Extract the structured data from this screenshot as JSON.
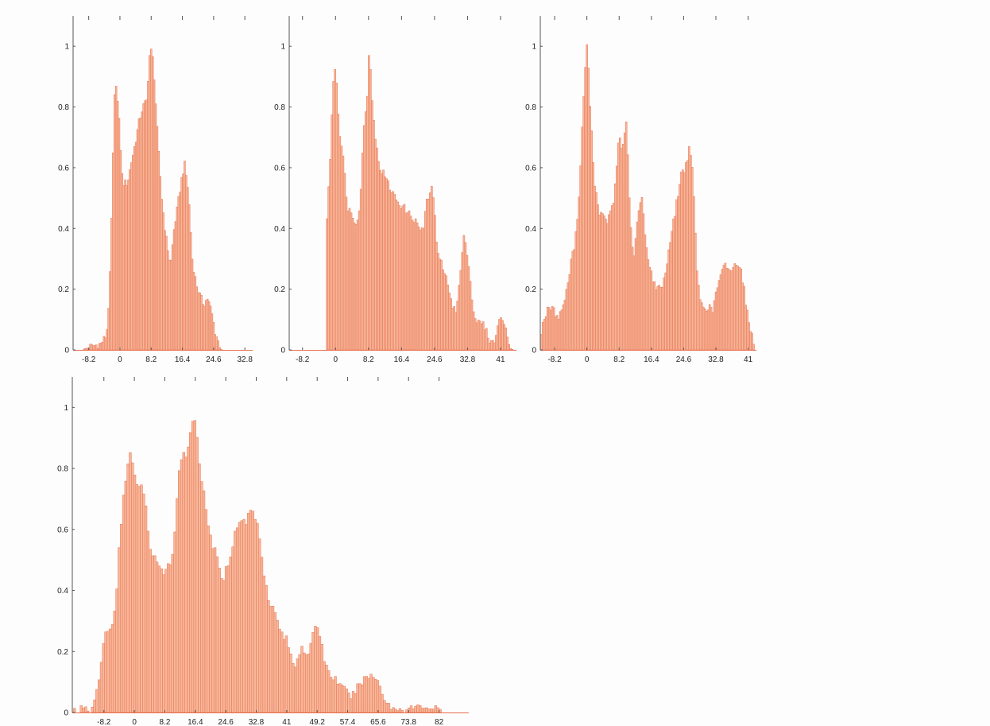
{
  "colors": {
    "bar_fill": "#f7b79a",
    "bar_line": "#e8704f",
    "axis": "#555555",
    "background": "#fdfdfd"
  },
  "chart_data": [
    {
      "type": "bar",
      "panel": "top-left",
      "x_ticks": [
        "-8.2",
        "0",
        "8.2",
        "16.4",
        "24.6",
        "32.8"
      ],
      "y_ticks": [
        "0",
        "0.2",
        "0.4",
        "0.6",
        "0.8",
        "1"
      ],
      "xlim": [
        -12.3,
        34.85
      ],
      "ylim": [
        0,
        1.1
      ],
      "grid": false,
      "profile": [
        [
          -10,
          0.0
        ],
        [
          -8,
          0.01
        ],
        [
          -5,
          0.02
        ],
        [
          -3.5,
          0.05
        ],
        [
          -2.7,
          0.2
        ],
        [
          -2,
          0.52
        ],
        [
          -1.5,
          0.82
        ],
        [
          -1,
          0.88
        ],
        [
          -0.5,
          0.8
        ],
        [
          0,
          0.72
        ],
        [
          0.5,
          0.58
        ],
        [
          1,
          0.55
        ],
        [
          2,
          0.55
        ],
        [
          3,
          0.62
        ],
        [
          4,
          0.68
        ],
        [
          5,
          0.75
        ],
        [
          6,
          0.8
        ],
        [
          7,
          0.82
        ],
        [
          7.8,
          0.97
        ],
        [
          8.4,
          0.99
        ],
        [
          9,
          0.9
        ],
        [
          10,
          0.68
        ],
        [
          11,
          0.5
        ],
        [
          12,
          0.38
        ],
        [
          13,
          0.3
        ],
        [
          13.5,
          0.29
        ],
        [
          14,
          0.38
        ],
        [
          15,
          0.46
        ],
        [
          16.4,
          0.58
        ],
        [
          17,
          0.61
        ],
        [
          18,
          0.52
        ],
        [
          19,
          0.3
        ],
        [
          20,
          0.22
        ],
        [
          21,
          0.18
        ],
        [
          22,
          0.15
        ],
        [
          23,
          0.17
        ],
        [
          24,
          0.13
        ],
        [
          25,
          0.06
        ],
        [
          26,
          0.02
        ],
        [
          27,
          0.0
        ],
        [
          34,
          0.0
        ]
      ]
    },
    {
      "type": "bar",
      "panel": "top-middle",
      "x_ticks": [
        "-8.2",
        "0",
        "8.2",
        "16.4",
        "24.6",
        "32.8",
        "41"
      ],
      "y_ticks": [
        "0",
        "0.2",
        "0.4",
        "0.6",
        "0.8",
        "1"
      ],
      "xlim": [
        -11.5,
        44.95
      ],
      "ylim": [
        0,
        1.1
      ],
      "grid": false,
      "profile": [
        [
          -3.5,
          0.0
        ],
        [
          -2.5,
          0.0
        ],
        [
          -2.3,
          0.3
        ],
        [
          -2,
          0.5
        ],
        [
          -1.5,
          0.55
        ],
        [
          -1,
          0.75
        ],
        [
          -0.3,
          0.95
        ],
        [
          0.3,
          0.88
        ],
        [
          1,
          0.72
        ],
        [
          2,
          0.62
        ],
        [
          3,
          0.47
        ],
        [
          4,
          0.45
        ],
        [
          5,
          0.42
        ],
        [
          6,
          0.46
        ],
        [
          7,
          0.72
        ],
        [
          8,
          0.86
        ],
        [
          8.4,
          1.0
        ],
        [
          9,
          0.85
        ],
        [
          10,
          0.68
        ],
        [
          11,
          0.6
        ],
        [
          12,
          0.58
        ],
        [
          13,
          0.55
        ],
        [
          14,
          0.52
        ],
        [
          15,
          0.5
        ],
        [
          16,
          0.48
        ],
        [
          17,
          0.47
        ],
        [
          18,
          0.45
        ],
        [
          19,
          0.44
        ],
        [
          20,
          0.42
        ],
        [
          21,
          0.4
        ],
        [
          22,
          0.4
        ],
        [
          22.5,
          0.48
        ],
        [
          23,
          0.5
        ],
        [
          24,
          0.53
        ],
        [
          24.6,
          0.48
        ],
        [
          25,
          0.35
        ],
        [
          26,
          0.3
        ],
        [
          27,
          0.25
        ],
        [
          28,
          0.22
        ],
        [
          29,
          0.15
        ],
        [
          30,
          0.12
        ],
        [
          31,
          0.25
        ],
        [
          32,
          0.38
        ],
        [
          33,
          0.3
        ],
        [
          34,
          0.15
        ],
        [
          35,
          0.09
        ],
        [
          36,
          0.09
        ],
        [
          37,
          0.08
        ],
        [
          38,
          0.04
        ],
        [
          39,
          0.02
        ],
        [
          40,
          0.05
        ],
        [
          41,
          0.12
        ],
        [
          42,
          0.08
        ],
        [
          43,
          0.02
        ],
        [
          44,
          0.0
        ]
      ]
    },
    {
      "type": "bar",
      "panel": "top-right",
      "x_ticks": [
        "-8.2",
        "0",
        "8.2",
        "16.4",
        "24.6",
        "32.8",
        "41"
      ],
      "y_ticks": [
        "0",
        "0.2",
        "0.4",
        "0.6",
        "0.8",
        "1"
      ],
      "xlim": [
        -11.85,
        43.1
      ],
      "ylim": [
        0,
        1.1
      ],
      "grid": false,
      "profile": [
        [
          -11.8,
          0.05
        ],
        [
          -11,
          0.1
        ],
        [
          -10,
          0.13
        ],
        [
          -9,
          0.14
        ],
        [
          -8,
          0.12
        ],
        [
          -7,
          0.11
        ],
        [
          -6,
          0.15
        ],
        [
          -5,
          0.2
        ],
        [
          -4,
          0.3
        ],
        [
          -3,
          0.35
        ],
        [
          -2,
          0.5
        ],
        [
          -1,
          0.78
        ],
        [
          -0.5,
          0.92
        ],
        [
          0,
          1.0
        ],
        [
          0.5,
          0.9
        ],
        [
          1,
          0.75
        ],
        [
          2,
          0.55
        ],
        [
          3,
          0.46
        ],
        [
          4,
          0.44
        ],
        [
          5,
          0.42
        ],
        [
          6,
          0.45
        ],
        [
          7,
          0.5
        ],
        [
          8,
          0.68
        ],
        [
          8.5,
          0.7
        ],
        [
          9,
          0.65
        ],
        [
          10,
          0.76
        ],
        [
          10.5,
          0.6
        ],
        [
          11,
          0.42
        ],
        [
          12,
          0.3
        ],
        [
          13,
          0.45
        ],
        [
          14,
          0.5
        ],
        [
          15,
          0.35
        ],
        [
          16,
          0.28
        ],
        [
          17,
          0.22
        ],
        [
          18,
          0.2
        ],
        [
          19,
          0.21
        ],
        [
          20,
          0.25
        ],
        [
          21,
          0.35
        ],
        [
          22,
          0.42
        ],
        [
          23,
          0.5
        ],
        [
          24,
          0.58
        ],
        [
          25,
          0.6
        ],
        [
          26,
          0.66
        ],
        [
          27,
          0.58
        ],
        [
          28,
          0.25
        ],
        [
          29,
          0.15
        ],
        [
          30,
          0.14
        ],
        [
          31,
          0.14
        ],
        [
          32,
          0.13
        ],
        [
          33,
          0.2
        ],
        [
          34,
          0.24
        ],
        [
          35,
          0.28
        ],
        [
          36,
          0.27
        ],
        [
          37,
          0.26
        ],
        [
          38,
          0.29
        ],
        [
          39,
          0.28
        ],
        [
          40,
          0.2
        ],
        [
          41,
          0.1
        ],
        [
          42,
          0.05
        ],
        [
          42.5,
          0.02
        ]
      ]
    },
    {
      "type": "bar",
      "panel": "bottom-left",
      "x_ticks": [
        "-8.2",
        "0",
        "8.2",
        "16.4",
        "24.6",
        "32.8",
        "41",
        "49.2",
        "57.4",
        "65.6",
        "73.8",
        "82"
      ],
      "y_ticks": [
        "0",
        "0.2",
        "0.4",
        "0.6",
        "0.8",
        "1"
      ],
      "xlim": [
        -16.7,
        90.0
      ],
      "ylim": [
        0,
        1.1
      ],
      "grid": false,
      "profile": [
        [
          -16.4,
          0.01
        ],
        [
          -13,
          0.01
        ],
        [
          -12,
          0.0
        ],
        [
          -11,
          0.02
        ],
        [
          -10,
          0.08
        ],
        [
          -9,
          0.15
        ],
        [
          -8.2,
          0.24
        ],
        [
          -7,
          0.28
        ],
        [
          -6,
          0.27
        ],
        [
          -5,
          0.35
        ],
        [
          -4,
          0.55
        ],
        [
          -3,
          0.7
        ],
        [
          -2,
          0.8
        ],
        [
          -1,
          0.85
        ],
        [
          0,
          0.78
        ],
        [
          1,
          0.72
        ],
        [
          2,
          0.76
        ],
        [
          3,
          0.68
        ],
        [
          4,
          0.55
        ],
        [
          5,
          0.52
        ],
        [
          6,
          0.5
        ],
        [
          7,
          0.47
        ],
        [
          8,
          0.44
        ],
        [
          9,
          0.48
        ],
        [
          10,
          0.5
        ],
        [
          11,
          0.6
        ],
        [
          12,
          0.8
        ],
        [
          13,
          0.85
        ],
        [
          14,
          0.83
        ],
        [
          15,
          0.92
        ],
        [
          16,
          0.98
        ],
        [
          17,
          0.9
        ],
        [
          18,
          0.75
        ],
        [
          19,
          0.7
        ],
        [
          20,
          0.6
        ],
        [
          21,
          0.55
        ],
        [
          22,
          0.52
        ],
        [
          23,
          0.46
        ],
        [
          24,
          0.44
        ],
        [
          25,
          0.48
        ],
        [
          26,
          0.52
        ],
        [
          27,
          0.58
        ],
        [
          28,
          0.63
        ],
        [
          29,
          0.63
        ],
        [
          30,
          0.62
        ],
        [
          31,
          0.66
        ],
        [
          32,
          0.66
        ],
        [
          33,
          0.62
        ],
        [
          34,
          0.55
        ],
        [
          35,
          0.45
        ],
        [
          36,
          0.38
        ],
        [
          37,
          0.35
        ],
        [
          38,
          0.32
        ],
        [
          39,
          0.28
        ],
        [
          40,
          0.25
        ],
        [
          41,
          0.24
        ],
        [
          42,
          0.19
        ],
        [
          43,
          0.15
        ],
        [
          44,
          0.18
        ],
        [
          45,
          0.22
        ],
        [
          46,
          0.2
        ],
        [
          47,
          0.18
        ],
        [
          48,
          0.25
        ],
        [
          49,
          0.3
        ],
        [
          50,
          0.25
        ],
        [
          51,
          0.18
        ],
        [
          52,
          0.14
        ],
        [
          53,
          0.12
        ],
        [
          54,
          0.11
        ],
        [
          55,
          0.1
        ],
        [
          56,
          0.08
        ],
        [
          57,
          0.07
        ],
        [
          58,
          0.05
        ],
        [
          59,
          0.06
        ],
        [
          60,
          0.08
        ],
        [
          61,
          0.1
        ],
        [
          62,
          0.11
        ],
        [
          63,
          0.12
        ],
        [
          64,
          0.12
        ],
        [
          65,
          0.11
        ],
        [
          66,
          0.1
        ],
        [
          67,
          0.05
        ],
        [
          68,
          0.03
        ],
        [
          69,
          0.02
        ],
        [
          70,
          0.01
        ],
        [
          75,
          0.015
        ],
        [
          78,
          0.02
        ],
        [
          80,
          0.015
        ],
        [
          82,
          0.01
        ],
        [
          83,
          0.0
        ],
        [
          90,
          0.0
        ]
      ]
    }
  ]
}
